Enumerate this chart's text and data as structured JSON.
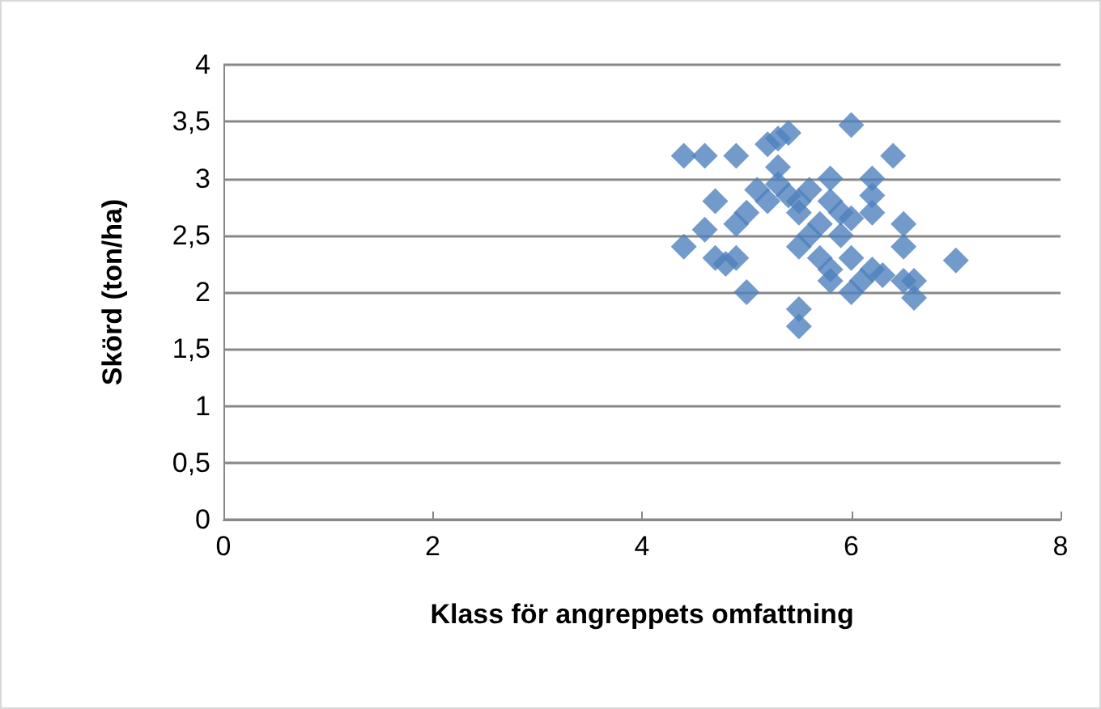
{
  "chart_data": {
    "type": "scatter",
    "xlabel": "Klass för angreppets omfattning",
    "ylabel": "Skörd (ton/ha)",
    "x": [
      4.4,
      4.6,
      4.9,
      4.4,
      4.6,
      4.7,
      4.7,
      4.8,
      4.9,
      4.9,
      5.0,
      5.0,
      5.1,
      5.2,
      5.2,
      5.3,
      5.4,
      5.3,
      5.3,
      5.4,
      5.5,
      5.5,
      5.5,
      5.6,
      5.5,
      5.5,
      5.6,
      5.7,
      5.7,
      5.8,
      5.8,
      5.8,
      5.8,
      5.9,
      6.0,
      6.0,
      6.0,
      6.1,
      6.2,
      6.2,
      6.2,
      6.2,
      6.3,
      6.4,
      6.5,
      6.5,
      6.5,
      6.6,
      6.6,
      7.0,
      5.9,
      6.0
    ],
    "values": [
      3.2,
      3.2,
      3.2,
      2.4,
      2.55,
      2.8,
      2.3,
      2.25,
      2.3,
      2.6,
      2.7,
      2.0,
      2.9,
      2.8,
      3.3,
      3.35,
      3.4,
      3.1,
      2.95,
      2.85,
      2.8,
      2.7,
      2.4,
      2.5,
      1.85,
      1.7,
      2.9,
      2.6,
      2.3,
      3.0,
      2.8,
      2.2,
      2.1,
      2.7,
      3.47,
      2.65,
      2.0,
      2.1,
      3.0,
      2.85,
      2.7,
      2.2,
      2.15,
      3.2,
      2.6,
      2.4,
      2.1,
      2.1,
      1.95,
      2.28,
      2.5,
      2.3
    ],
    "color": "#4f81bd",
    "marker": "diamond",
    "xlim": [
      0,
      8
    ],
    "xticks": [
      0,
      2,
      4,
      6,
      8
    ],
    "ylim": [
      0,
      4
    ],
    "yticks": [
      0,
      {
        "value": 0.5,
        "label": "0,5"
      },
      1,
      {
        "value": 1.5,
        "label": "1,5"
      },
      2,
      {
        "value": 2.5,
        "label": "2,5"
      },
      3,
      {
        "value": 3.5,
        "label": "3,5"
      },
      4
    ],
    "grid": "y"
  }
}
